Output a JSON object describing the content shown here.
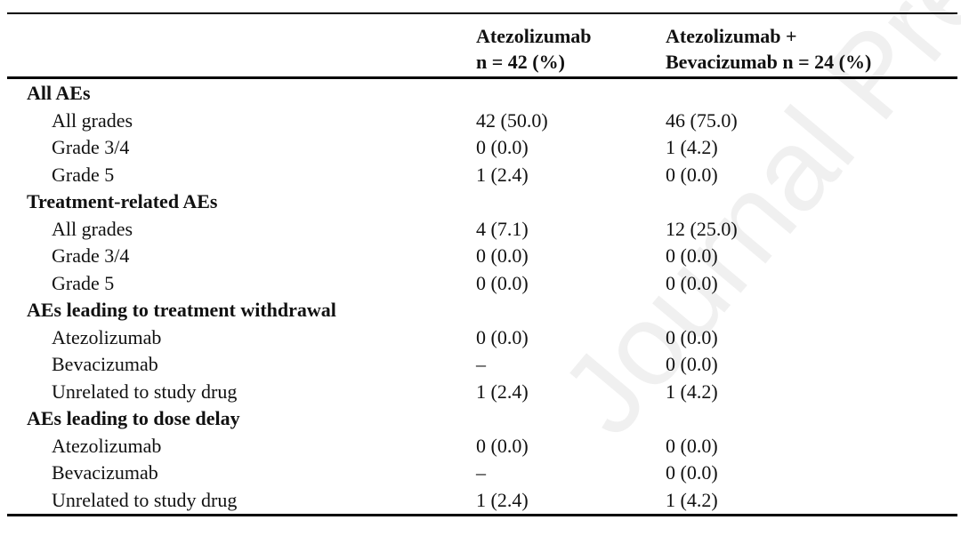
{
  "watermark": "Journal Pre-proof",
  "header": {
    "col1_line1": "Atezolizumab",
    "col1_line2": "n = 42 (%)",
    "col2_line1": "Atezolizumab +",
    "col2_line2": "Bevacizumab n = 24 (%)"
  },
  "rows": [
    {
      "label": "All AEs",
      "section": true
    },
    {
      "label": "All grades",
      "a": "42 (50.0)",
      "ab": "46 (75.0)"
    },
    {
      "label": "Grade 3/4",
      "a": "0 (0.0)",
      "ab": "1 (4.2)"
    },
    {
      "label": "Grade 5",
      "a": "1 (2.4)",
      "ab": "0 (0.0)"
    },
    {
      "label": "Treatment-related AEs",
      "section": true
    },
    {
      "label": "All grades",
      "a": "4 (7.1)",
      "ab": "12 (25.0)"
    },
    {
      "label": "Grade 3/4",
      "a": "0 (0.0)",
      "ab": "0 (0.0)"
    },
    {
      "label": "Grade 5",
      "a": "0 (0.0)",
      "ab": "0 (0.0)"
    },
    {
      "label": "AEs leading to treatment withdrawal",
      "section": true
    },
    {
      "label": "Atezolizumab",
      "a": "0 (0.0)",
      "ab": "0 (0.0)"
    },
    {
      "label": "Bevacizumab",
      "a": "–",
      "ab": "0 (0.0)"
    },
    {
      "label": "Unrelated to study drug",
      "a": "1 (2.4)",
      "ab": "1 (4.2)"
    },
    {
      "label": "AEs leading to dose delay",
      "section": true
    },
    {
      "label": "Atezolizumab",
      "a": "0 (0.0)",
      "ab": "0 (0.0)"
    },
    {
      "label": "Bevacizumab",
      "a": "–",
      "ab": "0 (0.0)"
    },
    {
      "label": "Unrelated to study drug",
      "a": "1 (2.4)",
      "ab": "1 (4.2)"
    }
  ]
}
